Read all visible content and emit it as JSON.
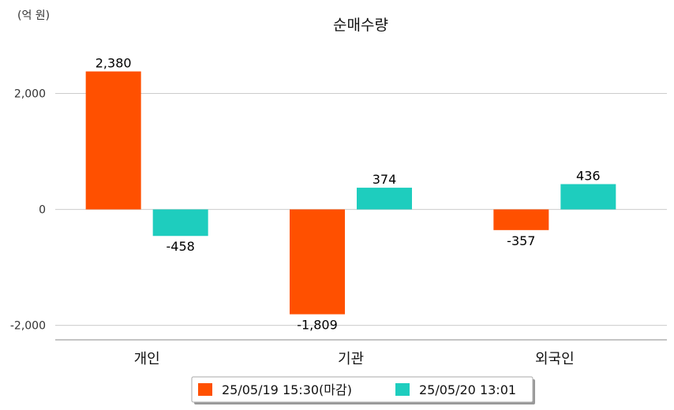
{
  "chart_data": {
    "type": "bar",
    "title": "순매수량",
    "unit_label": "(억 원)",
    "xlabel": "",
    "ylabel": "",
    "categories": [
      "개인",
      "기관",
      "외국인"
    ],
    "series": [
      {
        "name": "25/05/19 15:30(마감)",
        "color": "#FF5000",
        "values": [
          2380,
          -1809,
          -357
        ],
        "labels": [
          "2,380",
          "-1,809",
          "-357"
        ]
      },
      {
        "name": "25/05/20 13:01",
        "color": "#1ECDBE",
        "values": [
          -458,
          374,
          436
        ],
        "labels": [
          "-458",
          "374",
          "436"
        ]
      }
    ],
    "yticks": [
      2000,
      0,
      -2000
    ],
    "ytick_labels": [
      "2,000",
      "0",
      "-2,000"
    ],
    "ylim": [
      -2250,
      3000
    ],
    "grid": true,
    "legend_position": "bottom"
  }
}
